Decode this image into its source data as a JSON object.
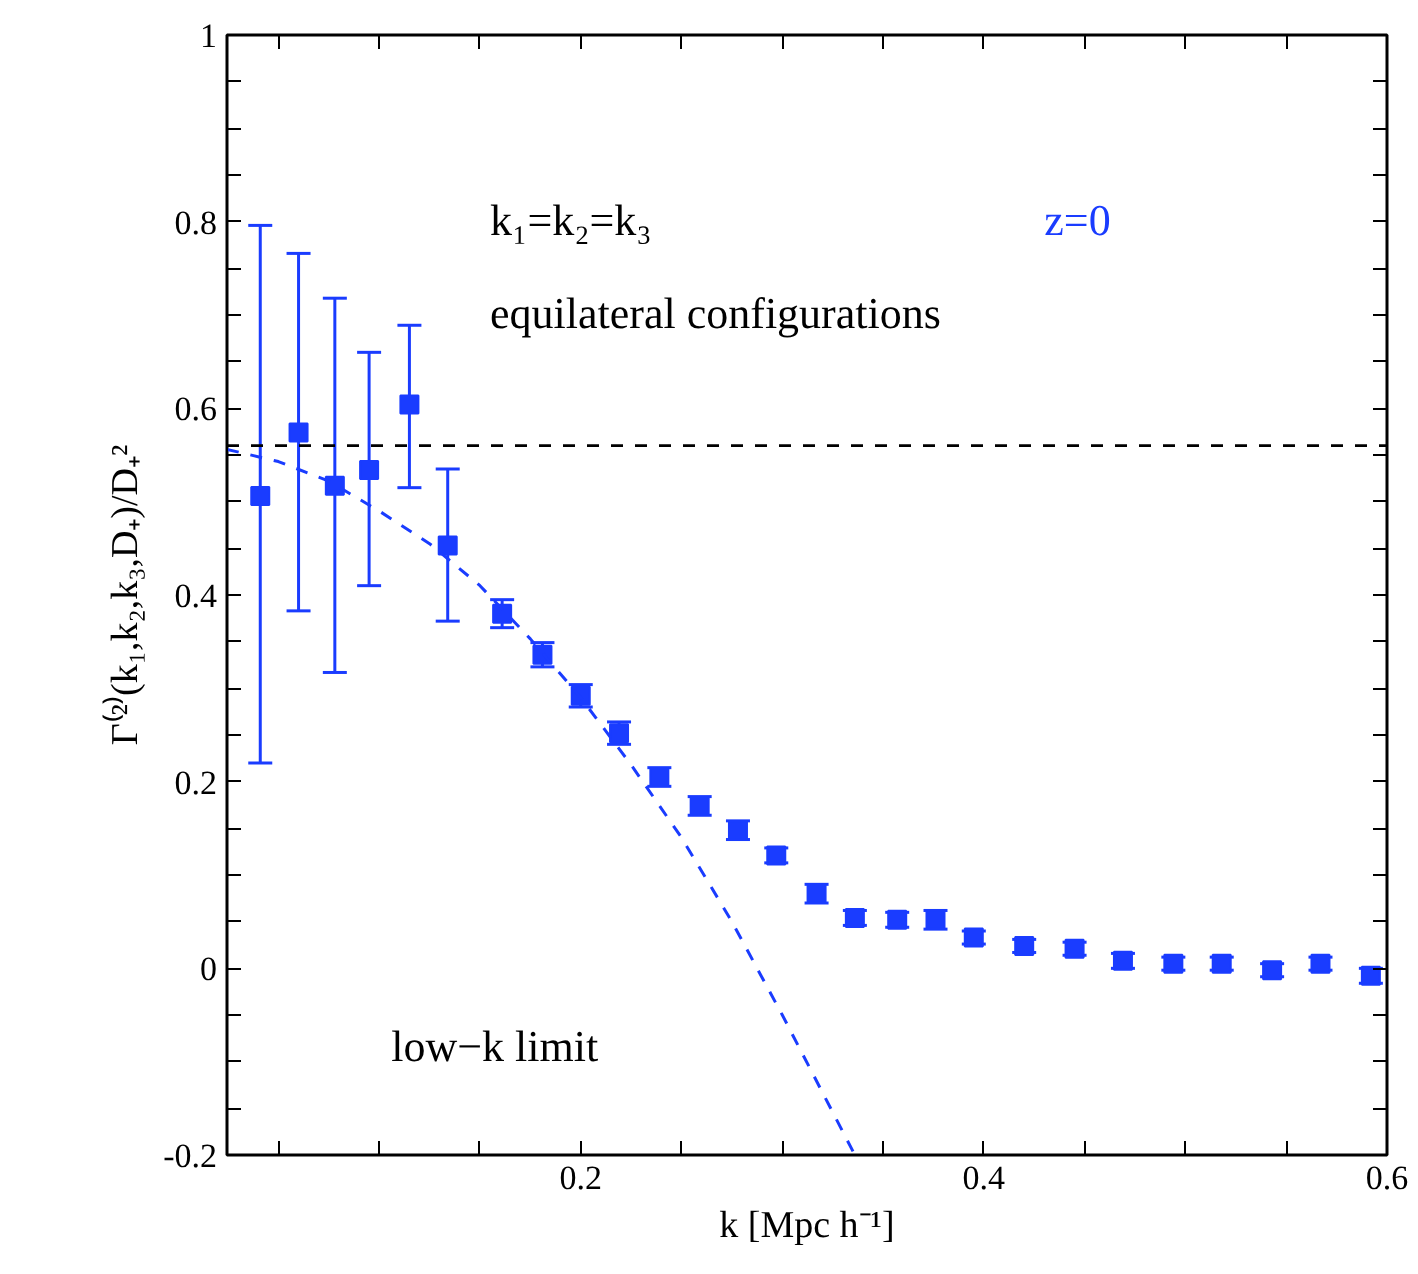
{
  "chart_data": {
    "type": "scatter",
    "xlabel": "k [Mpc h⁻¹]",
    "ylabel": "Γ⁽²⁾(k₁,k₂,k₃,D₊)/D₊²",
    "annotations": [
      "k₁=k₂=k₃",
      "equilateral configurations",
      "z=0",
      "low−k limit"
    ],
    "xlim": [
      0.0245,
      0.6
    ],
    "ylim": [
      -0.2,
      1
    ],
    "xticks": [
      {
        "value": 0.05,
        "label": null
      },
      {
        "value": 0.1,
        "label": null
      },
      {
        "value": 0.15,
        "label": null
      },
      0.2,
      {
        "value": 0.25,
        "label": null
      },
      {
        "value": 0.3,
        "label": null
      },
      {
        "value": 0.35,
        "label": null
      },
      0.4,
      {
        "value": 0.45,
        "label": null
      },
      {
        "value": 0.5,
        "label": null
      },
      {
        "value": 0.55,
        "label": null
      },
      0.6
    ],
    "yticks": [
      -0.2,
      {
        "value": -0.15,
        "label": null
      },
      {
        "value": -0.1,
        "label": null
      },
      {
        "value": -0.05,
        "label": null
      },
      0,
      {
        "value": 0.05,
        "label": null
      },
      {
        "value": 0.1,
        "label": null
      },
      {
        "value": 0.15,
        "label": null
      },
      0.2,
      {
        "value": 0.25,
        "label": null
      },
      {
        "value": 0.3,
        "label": null
      },
      {
        "value": 0.35,
        "label": null
      },
      0.4,
      {
        "value": 0.45,
        "label": null
      },
      {
        "value": 0.5,
        "label": null
      },
      {
        "value": 0.55,
        "label": null
      },
      0.6,
      {
        "value": 0.65,
        "label": null
      },
      {
        "value": 0.7,
        "label": null
      },
      {
        "value": 0.75,
        "label": null
      },
      0.8,
      {
        "value": 0.85,
        "label": null
      },
      {
        "value": 0.9,
        "label": null
      },
      {
        "value": 0.95,
        "label": null
      },
      1
    ],
    "grid": false,
    "ref_lines": [
      {
        "axis": "y",
        "value": 0.56,
        "color": "#000000",
        "line_style": "dashed"
      }
    ],
    "series": [
      {
        "color": "#1a3cff",
        "marker": "square",
        "x": [
          0.041,
          0.06,
          0.078,
          0.095,
          0.115,
          0.134,
          0.161,
          0.181,
          0.2,
          0.219,
          0.239,
          0.259,
          0.278,
          0.297,
          0.317,
          0.336,
          0.357,
          0.376,
          0.395,
          0.42,
          0.445,
          0.469,
          0.494,
          0.518,
          0.543,
          0.567,
          0.592
        ],
        "values": [
          0.506,
          0.574,
          0.517,
          0.534,
          0.604,
          0.453,
          0.38,
          0.336,
          0.292,
          0.252,
          0.205,
          0.174,
          0.148,
          0.121,
          0.08,
          0.054,
          0.052,
          0.052,
          0.033,
          0.024,
          0.021,
          0.008,
          0.005,
          0.005,
          -0.002,
          0.005,
          -0.008
        ],
        "errors": [
          [
            0.22,
            0.796
          ],
          [
            0.383,
            0.766
          ],
          [
            0.317,
            0.718
          ],
          [
            0.41,
            0.66
          ],
          [
            0.515,
            0.689
          ],
          [
            0.372,
            0.535
          ],
          0.015,
          0.013,
          0.012,
          0.012,
          0.01,
          0.01,
          0.01,
          0.008,
          0.01,
          0.008,
          0.008,
          0.01,
          0.007,
          0.007,
          0.007,
          0.008,
          0.007,
          0.007,
          0.007,
          0.007,
          0.008
        ]
      },
      {
        "type": "line",
        "line_style": "dashed",
        "color": "#1a3cff",
        "x": [
          0.0245,
          0.05,
          0.075,
          0.1,
          0.125,
          0.15,
          0.175,
          0.2,
          0.225,
          0.25,
          0.275,
          0.3,
          0.336
        ],
        "values": [
          0.556,
          0.543,
          0.522,
          0.49,
          0.455,
          0.41,
          0.353,
          0.29,
          0.218,
          0.14,
          0.05,
          -0.05,
          -0.2
        ]
      }
    ]
  }
}
